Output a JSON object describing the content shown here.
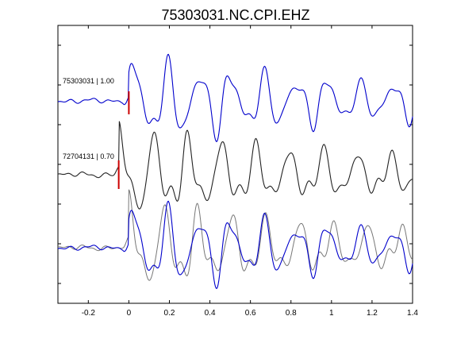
{
  "chart_data": {
    "type": "line",
    "title": "75303031.NC.CPI.EHZ",
    "xlabel": "",
    "ylabel": "",
    "xlim": [
      -0.35,
      1.4
    ],
    "x_ticks": [
      -0.2,
      0,
      0.2,
      0.4,
      0.6,
      0.8,
      1,
      1.2,
      1.4
    ],
    "x_tick_labels": [
      "-0.2",
      "0",
      "0.2",
      "0.4",
      "0.6",
      "0.8",
      "1",
      "1.2",
      "1.4"
    ],
    "y_tick_count": 7,
    "grid": false,
    "colors": {
      "primary_trace": "#0000cc",
      "secondary_trace": "#222222",
      "overlay_secondary": "#777777",
      "pick_marker": "#cc0000",
      "axes": "#000000"
    },
    "traces": [
      {
        "label": "75303031 | 1.00",
        "pick_time": 0.0,
        "color_key": "primary_trace",
        "amplitude": 1.0,
        "shift": 0.0
      },
      {
        "label": "72704131 | 0.70",
        "pick_time": -0.05,
        "color_key": "secondary_trace",
        "amplitude": 1.05,
        "shift": 0.0
      }
    ],
    "overlay": {
      "label": "",
      "series": [
        "75303031 | 1.00",
        "72704131 | 0.70"
      ]
    }
  }
}
